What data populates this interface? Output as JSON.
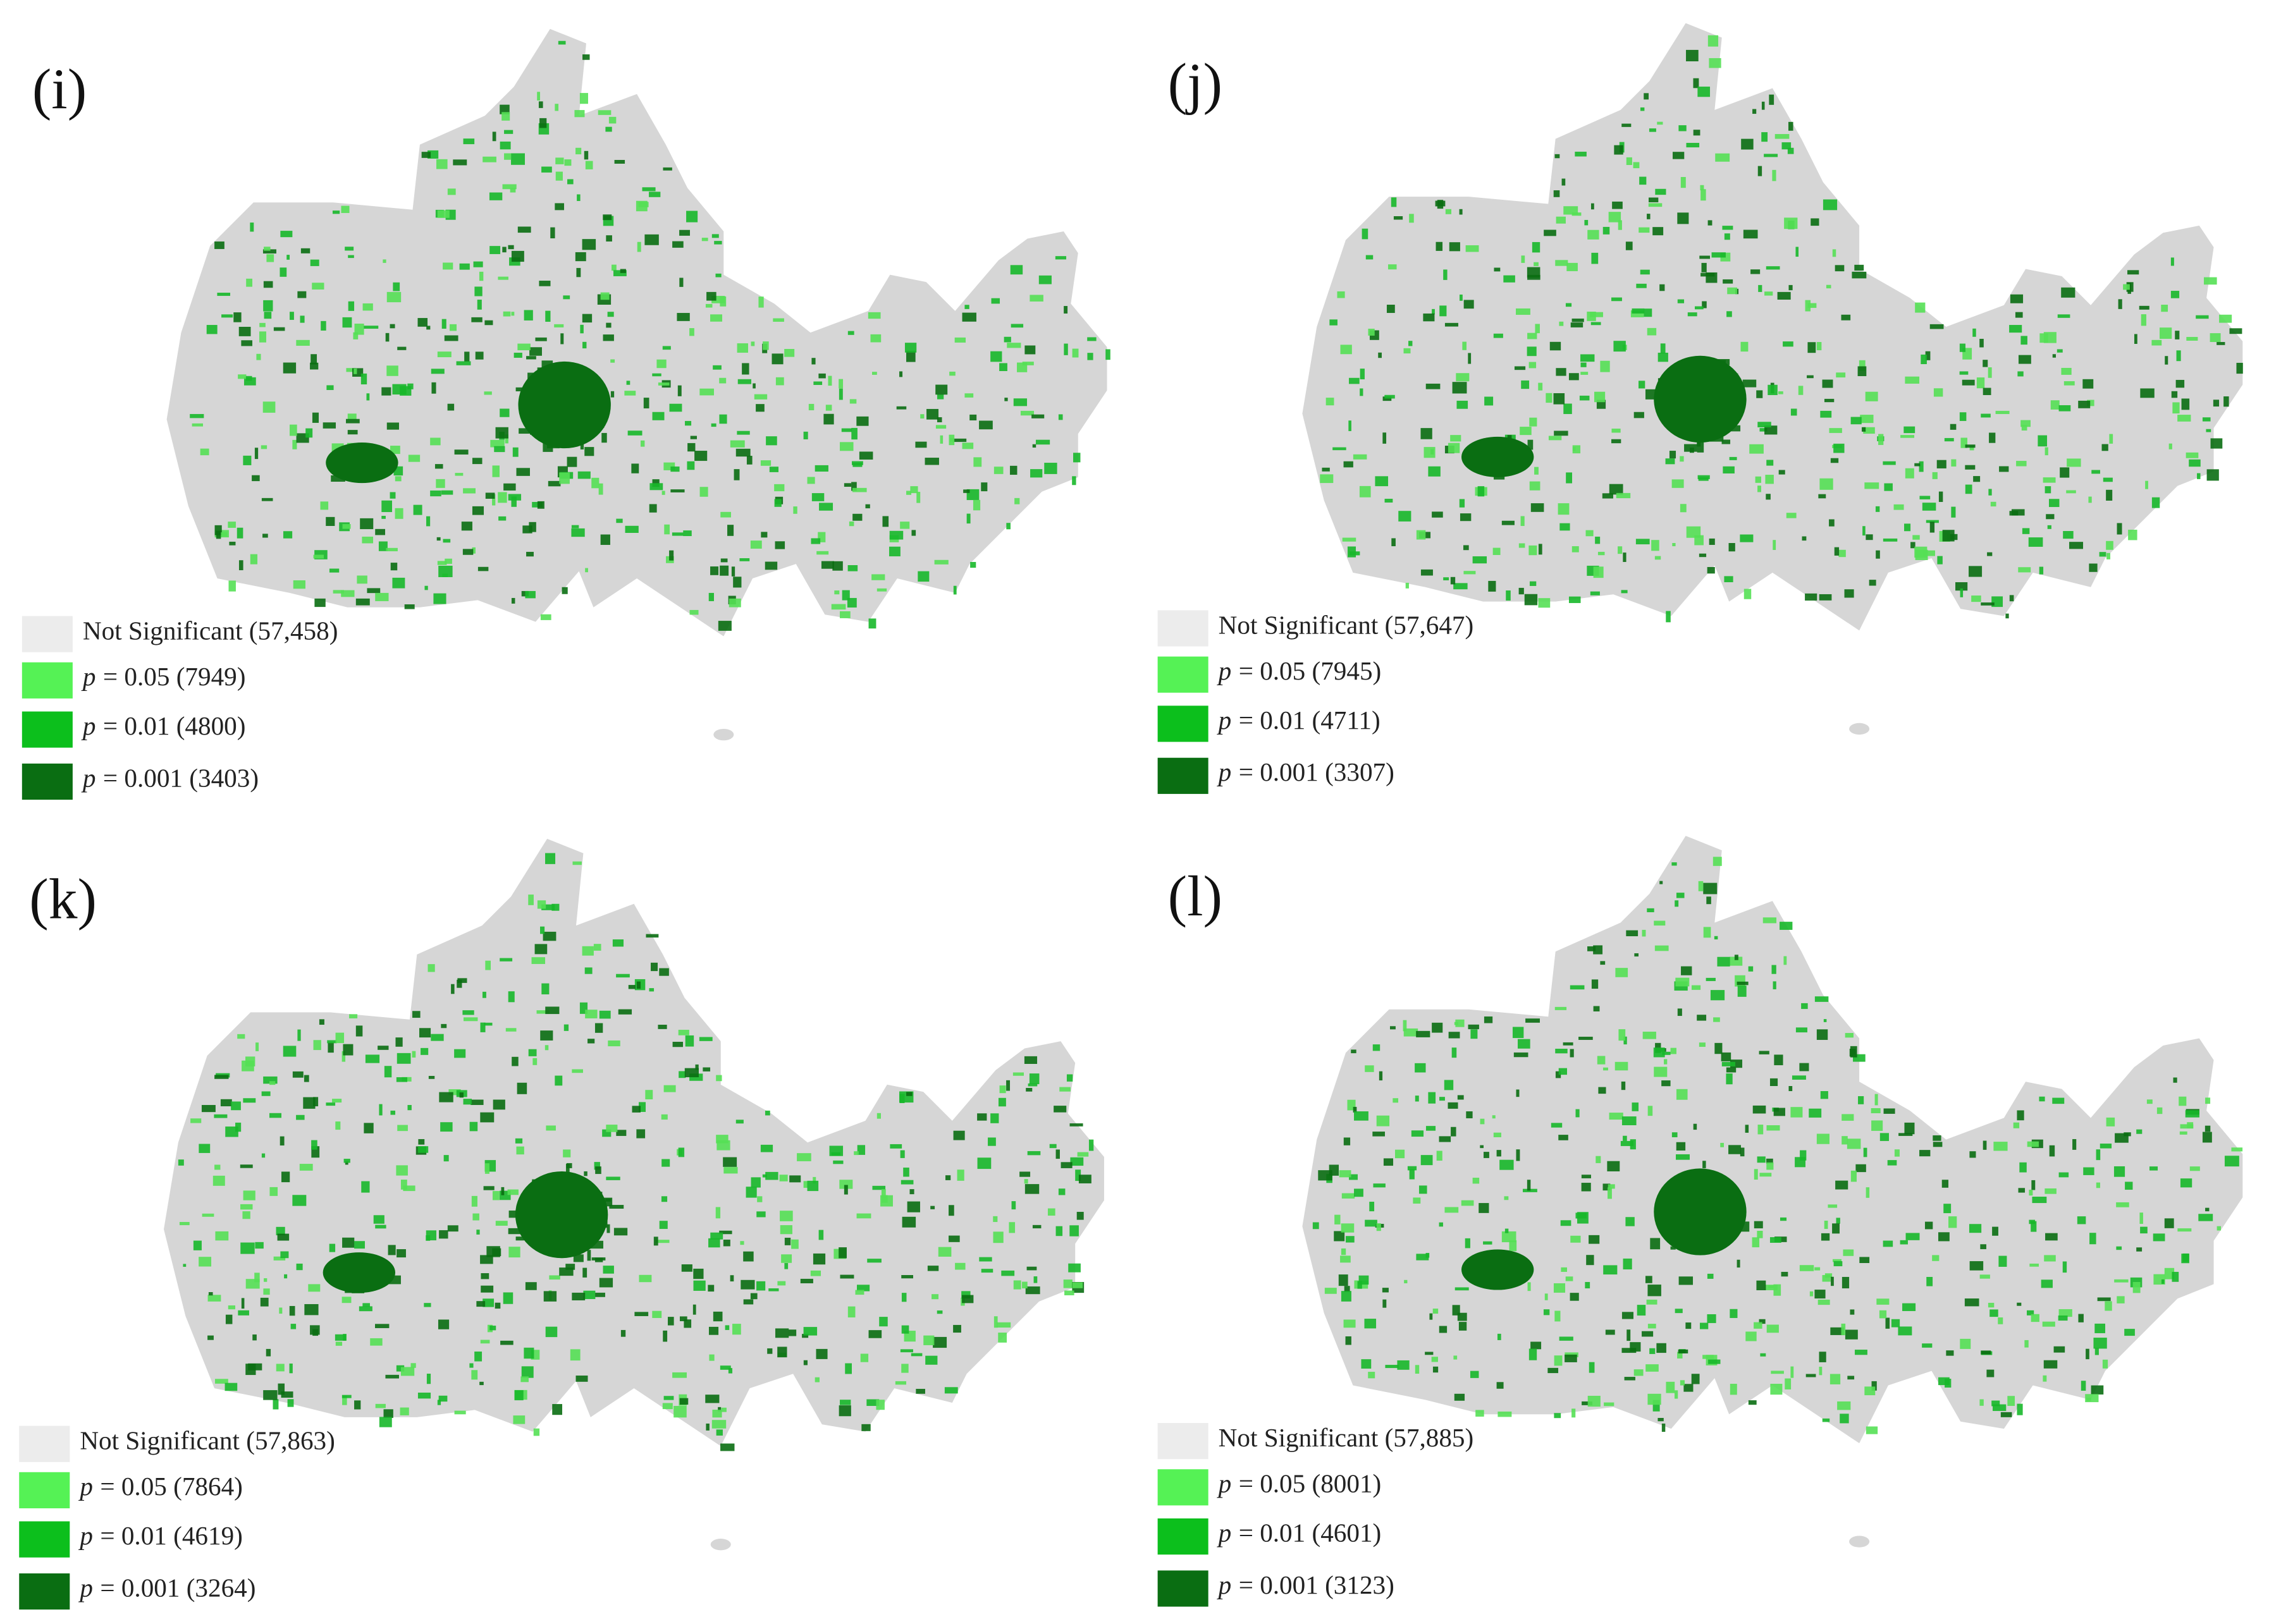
{
  "panels": [
    {
      "label": "(i)",
      "legend": [
        {
          "text": "Not Significant (57,458)"
        },
        {
          "symbol": "p",
          "text": "= 0.05 (7949)"
        },
        {
          "symbol": "p",
          "text": "= 0.01 (4800)"
        },
        {
          "symbol": "p",
          "text": "= 0.001 (3403)"
        }
      ]
    },
    {
      "label": "(j)",
      "legend": [
        {
          "text": "Not Significant (57,647)"
        },
        {
          "symbol": "p",
          "text": "= 0.05 (7945)"
        },
        {
          "symbol": "p",
          "text": "= 0.01 (4711)"
        },
        {
          "symbol": "p",
          "text": "= 0.001 (3307)"
        }
      ]
    },
    {
      "label": "(k)",
      "legend": [
        {
          "text": "Not Significant (57,863)"
        },
        {
          "symbol": "p",
          "text": "= 0.05 (7864)"
        },
        {
          "symbol": "p",
          "text": "= 0.01 (4619)"
        },
        {
          "symbol": "p",
          "text": "= 0.001 (3264)"
        }
      ]
    },
    {
      "label": "(l)",
      "legend": [
        {
          "text": "Not Significant (57,885)"
        },
        {
          "symbol": "p",
          "text": "= 0.05 (8001)"
        },
        {
          "symbol": "p",
          "text": "= 0.01 (4601)"
        },
        {
          "symbol": "p",
          "text": "= 0.001 (3123)"
        }
      ]
    }
  ]
}
